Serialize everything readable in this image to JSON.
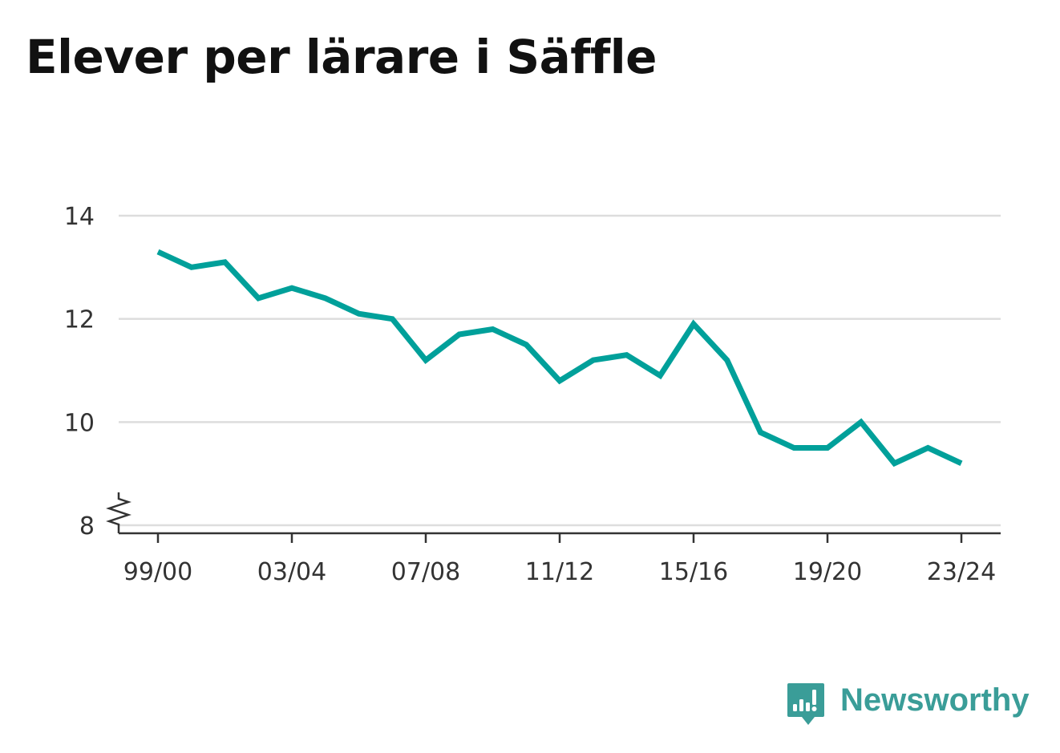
{
  "chart_data": {
    "type": "line",
    "title": "Elever per lärare i Säffle",
    "xlabel": "",
    "ylabel": "",
    "x": [
      "99/00",
      "00/01",
      "01/02",
      "02/03",
      "03/04",
      "04/05",
      "05/06",
      "06/07",
      "07/08",
      "08/09",
      "09/10",
      "10/11",
      "11/12",
      "12/13",
      "13/14",
      "14/15",
      "15/16",
      "16/17",
      "17/18",
      "18/19",
      "19/20",
      "20/21",
      "21/22",
      "22/23",
      "23/24"
    ],
    "x_tick_labels": [
      "99/00",
      "03/04",
      "07/08",
      "11/12",
      "15/16",
      "19/20",
      "23/24"
    ],
    "series": [
      {
        "values": [
          13.3,
          13.0,
          13.1,
          12.4,
          12.6,
          12.4,
          12.1,
          12.0,
          11.2,
          11.7,
          11.8,
          11.5,
          10.8,
          11.2,
          11.3,
          10.9,
          11.9,
          11.2,
          9.8,
          9.5,
          9.5,
          10.0,
          9.2,
          9.5,
          9.2
        ],
        "color": "#00a09a"
      }
    ],
    "yticks": [
      8,
      10,
      12,
      14
    ],
    "ylim": [
      8,
      14
    ],
    "y_axis_break": true,
    "grid": true,
    "legend": "none"
  },
  "colors": {
    "line": "#00a09a",
    "grid": "#dddddd",
    "axis": "#333333",
    "brand": "#3a9d98"
  },
  "brand": {
    "name": "Newsworthy",
    "icon": "newsworthy-logo-icon"
  }
}
